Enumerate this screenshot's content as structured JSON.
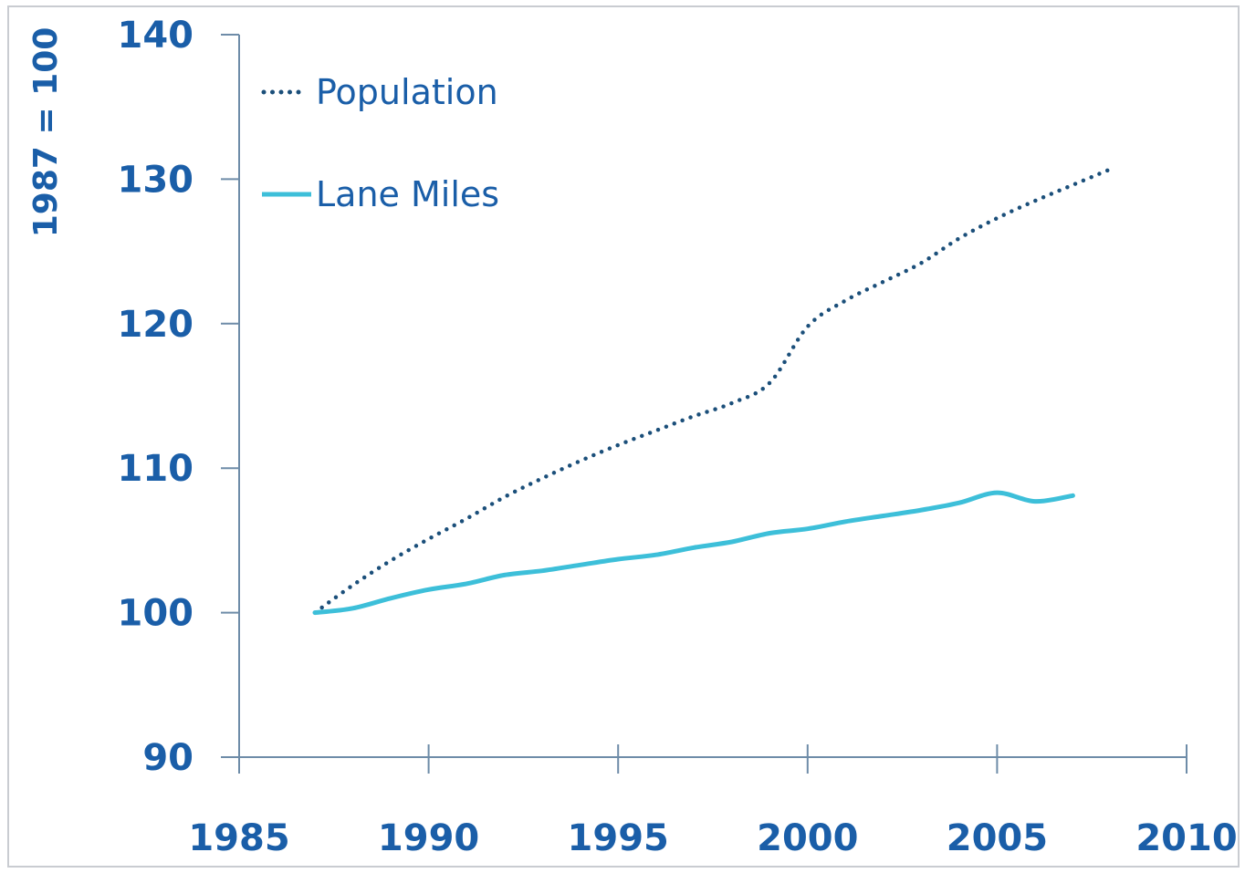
{
  "chart_data": {
    "type": "line",
    "ylabel": "1987 = 100",
    "xlabel": "",
    "xlim": [
      1985,
      2010
    ],
    "ylim": [
      90,
      140
    ],
    "x_ticks": [
      "1985",
      "1990",
      "1995",
      "2000",
      "2005",
      "2010"
    ],
    "y_ticks": [
      "90",
      "100",
      "110",
      "120",
      "130",
      "140"
    ],
    "grid": false,
    "legend_position": "top-left",
    "series": [
      {
        "name": "Population",
        "style": "dotted",
        "color": "#1b4f7a",
        "x": [
          1987,
          1988,
          1989,
          1990,
          1991,
          1992,
          1993,
          1994,
          1995,
          1996,
          1997,
          1998,
          1999,
          2000,
          2001,
          2002,
          2003,
          2004,
          2005,
          2006,
          2007,
          2008
        ],
        "y": [
          100.0,
          101.9,
          103.6,
          105.1,
          106.5,
          108.0,
          109.3,
          110.5,
          111.6,
          112.6,
          113.6,
          114.5,
          115.9,
          119.8,
          121.6,
          122.9,
          124.2,
          125.9,
          127.3,
          128.5,
          129.6,
          130.7
        ]
      },
      {
        "name": "Lane Miles",
        "style": "solid",
        "color": "#3dbfd9",
        "x": [
          1987,
          1988,
          1989,
          1990,
          1991,
          1992,
          1993,
          1994,
          1995,
          1996,
          1997,
          1998,
          1999,
          2000,
          2001,
          2002,
          2003,
          2004,
          2005,
          2006,
          2007
        ],
        "y": [
          100.0,
          100.3,
          101.0,
          101.6,
          102.0,
          102.6,
          102.9,
          103.3,
          103.7,
          104.0,
          104.5,
          104.9,
          105.5,
          105.8,
          106.3,
          106.7,
          107.1,
          107.6,
          108.3,
          107.7,
          108.1
        ]
      }
    ]
  },
  "colors": {
    "axis_text": "#1a5ea8",
    "axis_line": "#6e8ca8",
    "frame": "#c9ccd1"
  }
}
